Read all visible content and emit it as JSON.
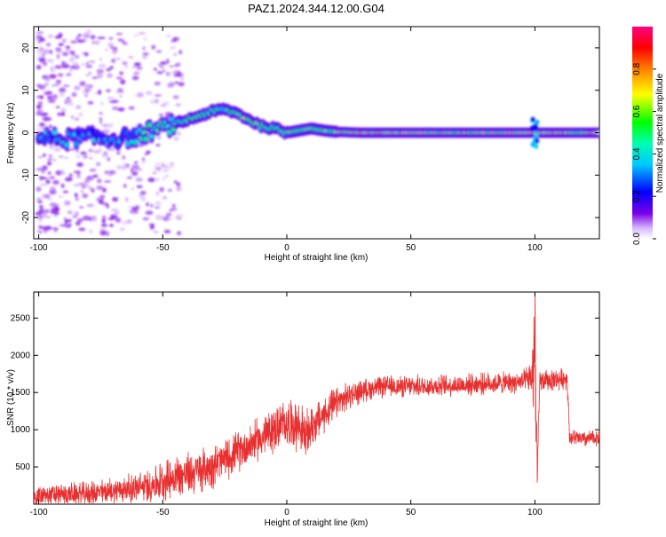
{
  "figure": {
    "title": "PAZ1.2024.344.12.00.G04"
  },
  "colorbar": {
    "label": "Normalized spectral amplitude",
    "ticks": [
      "0.0",
      "0.2",
      "0.4",
      "0.6",
      "0.8"
    ],
    "tick_values": [
      0.0,
      0.2,
      0.4,
      0.6,
      0.8
    ],
    "range": [
      0,
      1
    ],
    "colormap": "rainbow (white/violet → magenta)"
  },
  "chart_data": [
    {
      "type": "heatmap",
      "title": "",
      "xlabel": "Height of straight line (km)",
      "ylabel": "Frequency (Hz)",
      "xlim": [
        -102,
        126
      ],
      "ylim": [
        -25,
        25
      ],
      "xticks": [
        "-100",
        "-50",
        "0",
        "50",
        "100"
      ],
      "xtick_values": [
        -100,
        -50,
        0,
        50,
        100
      ],
      "yticks": [
        "-20",
        "-10",
        "0",
        "10",
        "20"
      ],
      "ytick_values": [
        -20,
        -10,
        0,
        10,
        20
      ],
      "ridge": {
        "x": [
          -100,
          -90,
          -80,
          -70,
          -60,
          -55,
          -50,
          -45,
          -40,
          -35,
          -30,
          -25,
          -20,
          -15,
          -10,
          -5,
          0,
          5,
          10,
          15,
          20,
          30,
          50,
          100,
          126
        ],
        "frequency": [
          -1,
          -1.5,
          -1,
          -1.5,
          -1,
          0.5,
          1,
          2,
          3,
          4,
          5,
          5.5,
          4.5,
          3,
          1.5,
          1,
          0,
          0.5,
          1,
          0.5,
          0.2,
          0,
          0,
          0,
          0
        ]
      }
    },
    {
      "type": "line",
      "title": "",
      "xlabel": "Height of straight line (km)",
      "ylabel": "SNR (10 * v/v)",
      "xlim": [
        -102,
        126
      ],
      "ylim": [
        0,
        2850
      ],
      "xticks": [
        "-100",
        "-50",
        "0",
        "50",
        "100"
      ],
      "xtick_values": [
        -100,
        -50,
        0,
        50,
        100
      ],
      "yticks": [
        "500",
        "1000",
        "1500",
        "2000",
        "2500"
      ],
      "ytick_values": [
        500,
        1000,
        1500,
        2000,
        2500
      ],
      "series": [
        {
          "color": "#e83030",
          "x": [
            -102,
            -90,
            -80,
            -70,
            -60,
            -55,
            -50,
            -45,
            -40,
            -35,
            -30,
            -25,
            -20,
            -15,
            -10,
            -5,
            0,
            5,
            8,
            10,
            15,
            20,
            25,
            30,
            35,
            40,
            50,
            60,
            70,
            80,
            90,
            95,
            99,
            100,
            101,
            102,
            105,
            110,
            113,
            114,
            120,
            126
          ],
          "values": [
            100,
            130,
            140,
            180,
            220,
            250,
            320,
            370,
            400,
            450,
            520,
            600,
            700,
            800,
            900,
            1000,
            1100,
            1050,
            900,
            1050,
            1200,
            1350,
            1450,
            1520,
            1560,
            1580,
            1580,
            1590,
            1600,
            1620,
            1630,
            1640,
            1700,
            2500,
            400,
            1650,
            1660,
            1680,
            1700,
            900,
            870,
            900
          ],
          "noise_amplitude": [
            120,
            130,
            140,
            160,
            180,
            200,
            240,
            260,
            260,
            260,
            260,
            240,
            240,
            240,
            260,
            280,
            280,
            300,
            300,
            260,
            220,
            200,
            160,
            140,
            130,
            130,
            130,
            130,
            130,
            130,
            130,
            130,
            200,
            300,
            200,
            130,
            130,
            130,
            130,
            100,
            100,
            100
          ]
        }
      ]
    }
  ]
}
